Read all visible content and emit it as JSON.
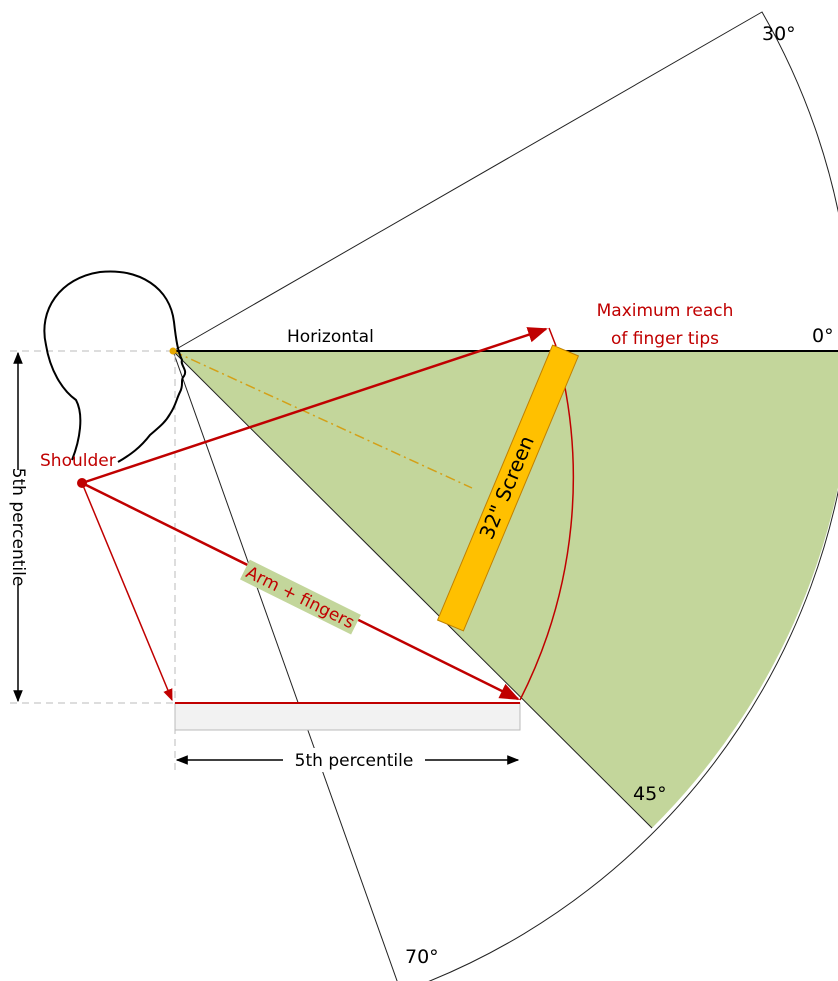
{
  "labels": {
    "angle_30": "30°",
    "angle_0": "0°",
    "angle_45": "45°",
    "angle_70": "70°",
    "horizontal": "Horizontal",
    "shoulder": "Shoulder",
    "max_reach_1": "Maximum reach",
    "max_reach_2": "of finger tips",
    "arm": "Arm + fingers",
    "screen": "32\" Screen",
    "vertical_percentile": "5th percentile",
    "horizontal_percentile": "5th percentile"
  }
}
